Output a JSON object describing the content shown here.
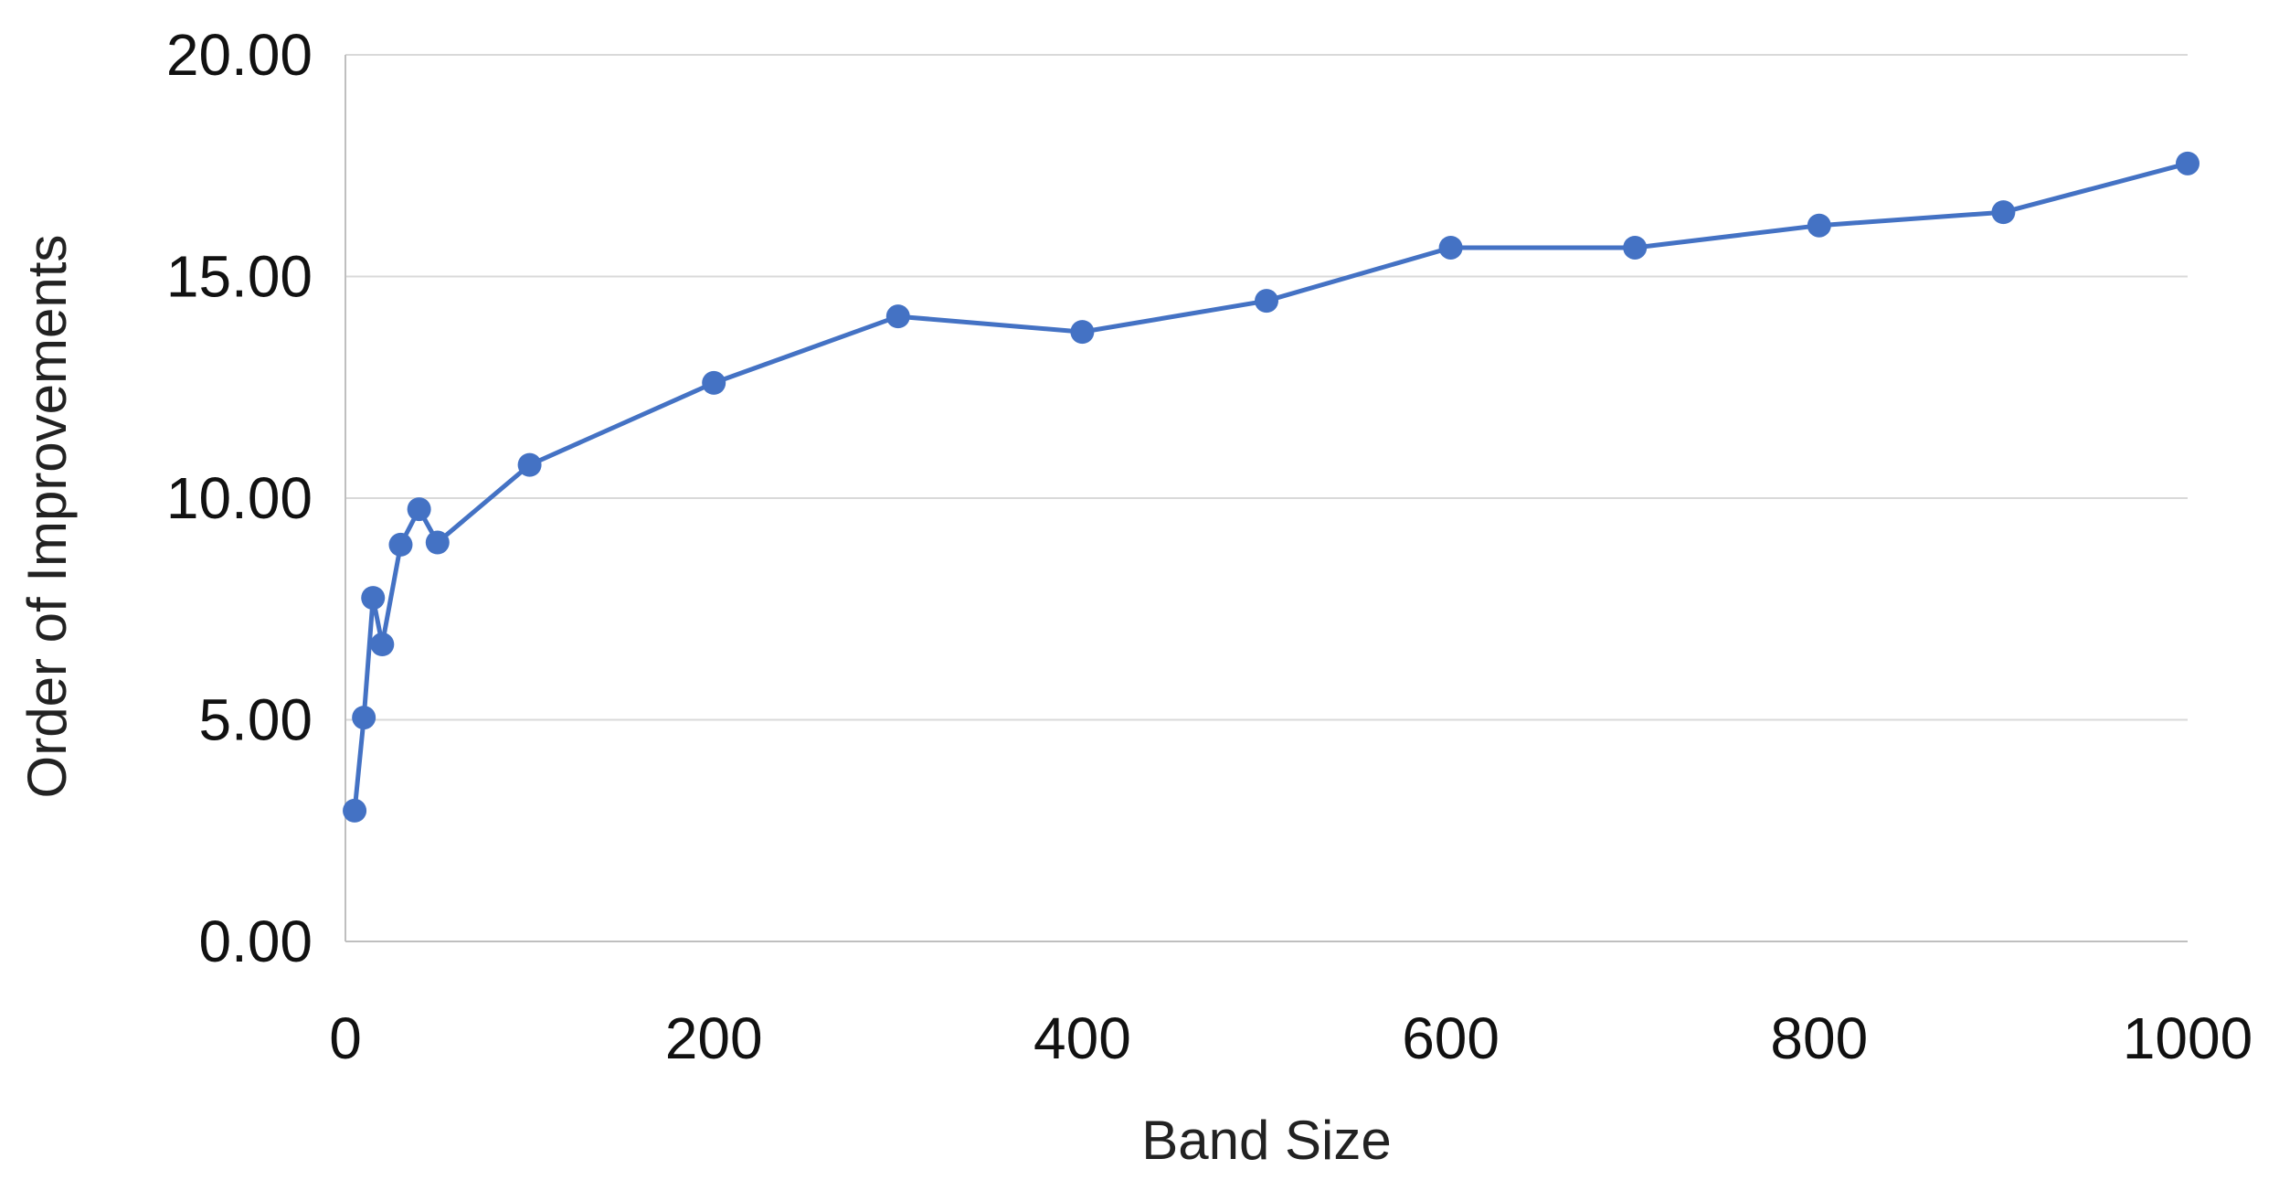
{
  "chart_data": {
    "type": "line",
    "title": "",
    "xlabel": "Band Size",
    "ylabel": "Order of Improvements",
    "xlim": [
      0,
      1000
    ],
    "ylim": [
      0,
      20
    ],
    "xticks": [
      0,
      200,
      400,
      600,
      800,
      1000
    ],
    "xtick_labels": [
      "0",
      "200",
      "400",
      "600",
      "800",
      "1000"
    ],
    "yticks": [
      0,
      5,
      10,
      15,
      20
    ],
    "ytick_labels": [
      "0.00",
      "5.00",
      "10.00",
      "15.00",
      "20.00"
    ],
    "grid": "horizontal",
    "legend": "none",
    "series": [
      {
        "color": "#4472C4",
        "marker": "circle",
        "x": [
          5,
          10,
          15,
          20,
          30,
          40,
          50,
          100,
          200,
          300,
          400,
          500,
          600,
          700,
          800,
          900,
          1000
        ],
        "y": [
          2.95,
          5.05,
          7.75,
          6.7,
          8.95,
          9.75,
          9.0,
          10.75,
          12.6,
          14.1,
          13.75,
          14.45,
          15.65,
          15.65,
          16.15,
          16.45,
          17.55
        ]
      }
    ]
  }
}
